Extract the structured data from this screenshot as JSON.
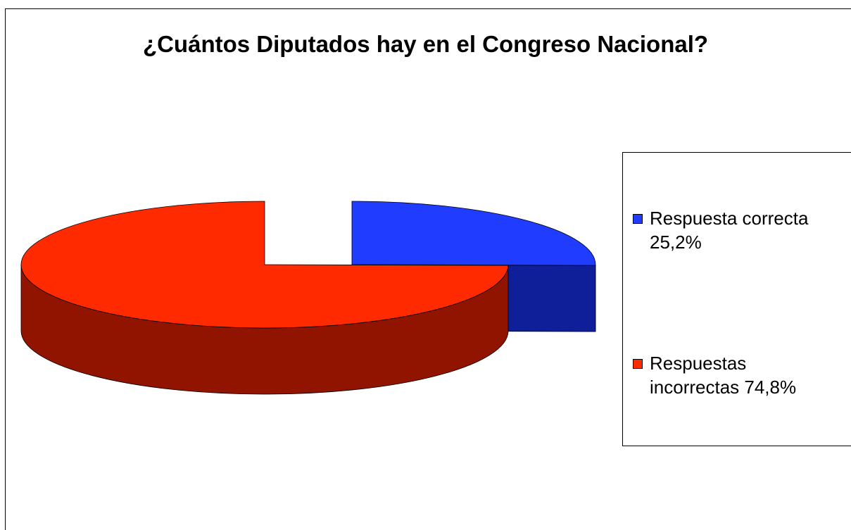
{
  "chart_data": {
    "type": "pie",
    "style": "3d-exploded",
    "title": "¿Cuántos Diputados hay en el Congreso Nacional?",
    "slices": [
      {
        "name": "Respuesta correcta",
        "value": 25.2,
        "legend_label": "Respuesta correcta 25,2%",
        "color_top": "#1f3cff",
        "color_side": "#0e1f99"
      },
      {
        "name": "Respuestas incorrectas",
        "value": 74.8,
        "legend_label": "Respuestas incorrectas 74,8%",
        "color_top": "#ff2a00",
        "color_side": "#911400"
      }
    ],
    "legend_position": "right"
  }
}
